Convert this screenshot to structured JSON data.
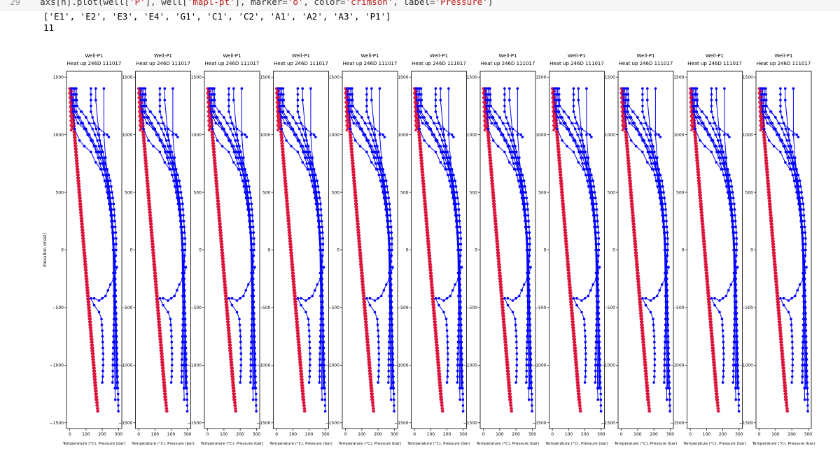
{
  "code": {
    "line_number": "29",
    "text_prefix": "axs[n].plot(well[",
    "str1": "'P'",
    "text_mid1": "], well[",
    "str2": "'mapl-pt'",
    "text_mid2": "], marker=",
    "str3": "'o'",
    "text_mid3": ", color=",
    "str4": "'crimson'",
    "text_mid4": ", label=",
    "str5": "'Pressure'",
    "text_end": ")"
  },
  "output": {
    "list_line": "['E1', 'E2', 'E3', 'E4', 'G1', 'C1', 'C2', 'A1', 'A2', 'A3', 'P1']",
    "count_line": "11"
  },
  "chart_data": {
    "type": "line",
    "panel_count": 11,
    "title": "Well-P1",
    "subtitle": "Heat up 246D 111017",
    "xlabel": "Temperature (°C), Pressure (bar)",
    "ylabel": "Elevation (masl)",
    "xlim": [
      -20,
      320
    ],
    "ylim": [
      -1550,
      1550
    ],
    "xticks": [
      0,
      100,
      200,
      300
    ],
    "yticks": [
      1500,
      1000,
      500,
      0,
      -500,
      -1000,
      -1500
    ],
    "ytick_labels": [
      "1500",
      "1000",
      "500",
      "0",
      "−500",
      "−1000",
      "−1500"
    ],
    "colors": {
      "pressure": "#dc143c",
      "temperature": "#0000ff"
    },
    "series": [
      {
        "kind": "pressure",
        "y_start": 1400,
        "y_end": 1040,
        "y_step": 20,
        "x_top": 0,
        "x_bottom": 10,
        "color": "#dc143c",
        "jitter": 1
      },
      {
        "kind": "pressure",
        "y_start": 1400,
        "y_end": -1400,
        "y_step": 25,
        "x_top": 5,
        "x_bottom": 170,
        "color": "#dc143c",
        "jitter": 0
      },
      {
        "kind": "pressure",
        "y_start": 1400,
        "y_end": -1400,
        "y_step": 25,
        "x_top": 10,
        "x_bottom": 175,
        "color": "#dc143c",
        "jitter": 0
      },
      {
        "kind": "pressure",
        "y_start": 1400,
        "y_end": -1300,
        "y_step": 25,
        "x_top": 2,
        "x_bottom": 160,
        "color": "#dc143c",
        "jitter": 0
      },
      {
        "kind": "pressure",
        "y_start": 1400,
        "y_end": -1350,
        "y_step": 25,
        "x_top": 8,
        "x_bottom": 165,
        "color": "#dc143c",
        "jitter": 0
      },
      {
        "kind": "temperature",
        "points": [
          [
            20,
            1400
          ],
          [
            25,
            1300
          ],
          [
            30,
            1200
          ],
          [
            70,
            1100
          ],
          [
            120,
            1000
          ],
          [
            160,
            900
          ],
          [
            200,
            800
          ],
          [
            230,
            700
          ],
          [
            250,
            600
          ],
          [
            260,
            500
          ],
          [
            270,
            400
          ],
          [
            275,
            300
          ],
          [
            280,
            200
          ],
          [
            285,
            100
          ],
          [
            285,
            0
          ],
          [
            280,
            -100
          ],
          [
            278,
            -200
          ],
          [
            276,
            -300
          ],
          [
            275,
            -400
          ],
          [
            274,
            -500
          ],
          [
            272,
            -600
          ],
          [
            270,
            -700
          ],
          [
            268,
            -800
          ],
          [
            266,
            -900
          ],
          [
            265,
            -1000
          ],
          [
            265,
            -1100
          ],
          [
            263,
            -1150
          ]
        ],
        "color": "#0000ff",
        "dense": true
      },
      {
        "kind": "temperature",
        "points": [
          [
            10,
            1400
          ],
          [
            20,
            1200
          ],
          [
            50,
            1100
          ],
          [
            90,
            1050
          ],
          [
            130,
            950
          ],
          [
            170,
            850
          ],
          [
            200,
            750
          ],
          [
            220,
            650
          ],
          [
            235,
            550
          ],
          [
            245,
            450
          ],
          [
            255,
            350
          ],
          [
            262,
            250
          ],
          [
            268,
            150
          ],
          [
            272,
            50
          ],
          [
            275,
            -50
          ],
          [
            278,
            -150
          ],
          [
            280,
            -250
          ],
          [
            282,
            -350
          ],
          [
            283,
            -450
          ],
          [
            285,
            -550
          ],
          [
            287,
            -650
          ],
          [
            288,
            -750
          ],
          [
            290,
            -850
          ],
          [
            292,
            -950
          ],
          [
            293,
            -1050
          ],
          [
            295,
            -1150
          ],
          [
            297,
            -1250
          ],
          [
            298,
            -1350
          ],
          [
            299,
            -1400
          ]
        ],
        "color": "#0000ff",
        "dense": true
      },
      {
        "kind": "temperature",
        "points": [
          [
            30,
            1400
          ],
          [
            40,
            1200
          ],
          [
            80,
            1100
          ],
          [
            120,
            1000
          ],
          [
            150,
            900
          ],
          [
            175,
            800
          ],
          [
            195,
            700
          ],
          [
            215,
            600
          ],
          [
            230,
            500
          ],
          [
            242,
            400
          ],
          [
            252,
            300
          ],
          [
            260,
            200
          ],
          [
            266,
            100
          ],
          [
            270,
            0
          ],
          [
            274,
            -100
          ],
          [
            277,
            -200
          ],
          [
            279,
            -300
          ],
          [
            281,
            -400
          ],
          [
            283,
            -500
          ],
          [
            284,
            -600
          ],
          [
            285,
            -700
          ],
          [
            286,
            -800
          ],
          [
            287,
            -900
          ],
          [
            288,
            -1000
          ],
          [
            289,
            -1100
          ],
          [
            290,
            -1200
          ]
        ],
        "color": "#0000ff",
        "dense": true
      },
      {
        "kind": "temperature",
        "points": [
          [
            40,
            1400
          ],
          [
            45,
            1250
          ],
          [
            100,
            1150
          ],
          [
            140,
            1050
          ],
          [
            170,
            950
          ],
          [
            190,
            850
          ],
          [
            210,
            750
          ],
          [
            225,
            650
          ],
          [
            238,
            550
          ],
          [
            248,
            450
          ],
          [
            256,
            350
          ],
          [
            262,
            250
          ],
          [
            267,
            150
          ],
          [
            271,
            50
          ],
          [
            274,
            -50
          ],
          [
            276,
            -150
          ],
          [
            278,
            -250
          ],
          [
            280,
            -350
          ],
          [
            282,
            -450
          ],
          [
            283,
            -550
          ],
          [
            285,
            -650
          ],
          [
            286,
            -750
          ],
          [
            287,
            -850
          ],
          [
            288,
            -950
          ],
          [
            289,
            -1050
          ],
          [
            291,
            -1150
          ]
        ],
        "color": "#0000ff",
        "dense": true
      },
      {
        "kind": "temperature",
        "points": [
          [
            130,
            1400
          ],
          [
            130,
            1200
          ],
          [
            150,
            1100
          ],
          [
            175,
            1000
          ],
          [
            195,
            900
          ],
          [
            212,
            800
          ],
          [
            226,
            700
          ],
          [
            237,
            600
          ],
          [
            246,
            500
          ],
          [
            254,
            400
          ],
          [
            260,
            300
          ],
          [
            265,
            200
          ],
          [
            269,
            100
          ],
          [
            272,
            0
          ],
          [
            275,
            -100
          ],
          [
            277,
            -200
          ],
          [
            279,
            -300
          ],
          [
            281,
            -400
          ],
          [
            282,
            -500
          ],
          [
            284,
            -600
          ],
          [
            285,
            -700
          ],
          [
            286,
            -800
          ],
          [
            287,
            -900
          ],
          [
            288,
            -1000
          ],
          [
            290,
            -1100
          ],
          [
            291,
            -1200
          ]
        ],
        "color": "#0000ff",
        "dense": true
      },
      {
        "kind": "temperature",
        "points": [
          [
            210,
            1400
          ],
          [
            210,
            1000
          ],
          [
            220,
            800
          ],
          [
            235,
            600
          ],
          [
            250,
            400
          ],
          [
            260,
            200
          ],
          [
            268,
            0
          ],
          [
            272,
            -200
          ],
          [
            275,
            -400
          ],
          [
            278,
            -600
          ],
          [
            280,
            -800
          ],
          [
            282,
            -1000
          ],
          [
            284,
            -1200
          ]
        ],
        "color": "#0000ff",
        "dense": false
      },
      {
        "kind": "temperature",
        "points": [
          [
            160,
            1400
          ],
          [
            160,
            1300
          ],
          [
            180,
            1000
          ],
          [
            200,
            800
          ],
          [
            225,
            600
          ],
          [
            245,
            400
          ],
          [
            258,
            200
          ],
          [
            266,
            0
          ],
          [
            268,
            -200
          ],
          [
            270,
            -400
          ],
          [
            272,
            -600
          ],
          [
            274,
            -800
          ],
          [
            276,
            -1000
          ],
          [
            278,
            -1200
          ],
          [
            280,
            -1300
          ]
        ],
        "color": "#0000ff",
        "dense": false
      },
      {
        "kind": "temperature",
        "points": [
          [
            290,
            -150
          ],
          [
            270,
            -250
          ],
          [
            250,
            -300
          ],
          [
            220,
            -400
          ],
          [
            200,
            -420
          ],
          [
            180,
            -440
          ],
          [
            150,
            -420
          ],
          [
            130,
            -420
          ],
          [
            150,
            -480
          ],
          [
            180,
            -540
          ],
          [
            195,
            -600
          ],
          [
            200,
            -700
          ],
          [
            203,
            -800
          ],
          [
            205,
            -900
          ],
          [
            205,
            -1000
          ],
          [
            203,
            -1100
          ],
          [
            200,
            -1150
          ]
        ],
        "color": "#0000ff",
        "dense": true
      },
      {
        "kind": "temperature",
        "points": [
          [
            70,
            1200
          ],
          [
            100,
            1150
          ],
          [
            120,
            1100
          ],
          [
            150,
            1100
          ],
          [
            180,
            1050
          ],
          [
            230,
            1000
          ],
          [
            240,
            980
          ]
        ],
        "color": "#0000ff",
        "dense": false
      },
      {
        "kind": "temperature",
        "points": [
          [
            20,
            1250
          ],
          [
            30,
            1050
          ],
          [
            60,
            950
          ],
          [
            90,
            900
          ],
          [
            130,
            850
          ],
          [
            160,
            760
          ],
          [
            190,
            700
          ]
        ],
        "color": "#0000ff",
        "dense": false
      }
    ]
  }
}
